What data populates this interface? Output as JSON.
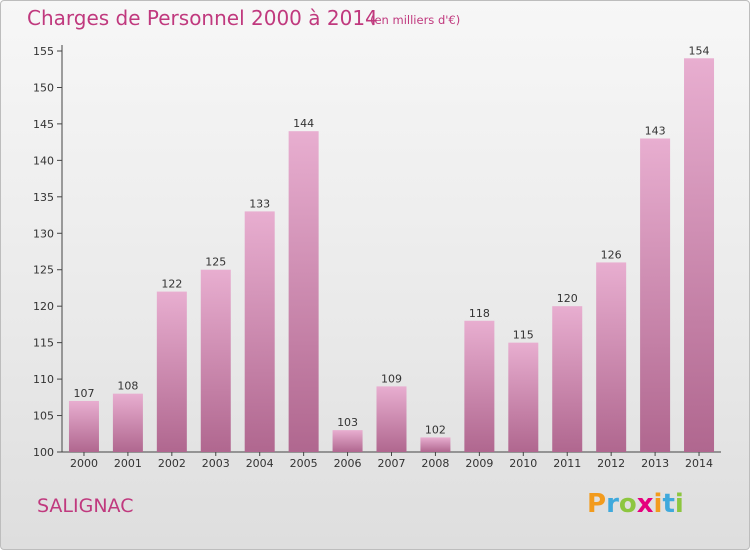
{
  "chart_data": {
    "type": "bar",
    "title": "Charges de Personnel 2000 à 2014",
    "subtitle": "(en milliers d'€)",
    "categories": [
      "2000",
      "2001",
      "2002",
      "2003",
      "2004",
      "2005",
      "2006",
      "2007",
      "2008",
      "2009",
      "2010",
      "2011",
      "2012",
      "2013",
      "2014"
    ],
    "values": [
      107,
      108,
      122,
      125,
      133,
      144,
      103,
      109,
      102,
      118,
      115,
      120,
      126,
      143,
      154
    ],
    "ylim": [
      100,
      155
    ],
    "yticks": [
      100,
      105,
      110,
      115,
      120,
      125,
      130,
      135,
      140,
      145,
      150,
      155
    ],
    "xlabel": "",
    "ylabel": "",
    "grid": false,
    "legend": "none",
    "bar_color": "#cc80ac"
  },
  "footer": {
    "commune": "SALIGNAC",
    "logo_letters": [
      "P",
      "r",
      "o",
      "x",
      "i",
      "t",
      "i"
    ],
    "logo_colors": [
      "#f29b1d",
      "#3fa9dc",
      "#8dc63f",
      "#e5007e",
      "#f29b1d",
      "#3fa9dc",
      "#8dc63f"
    ]
  },
  "colors": {
    "title": "#c0397e",
    "bar_top": "#e6a9cc",
    "bar_bottom": "#b06a94"
  }
}
